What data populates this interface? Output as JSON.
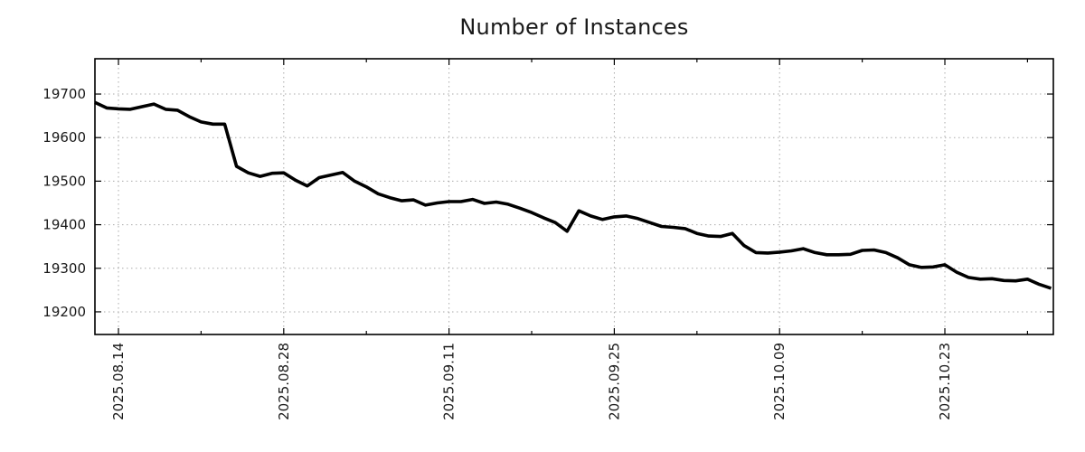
{
  "chart_data": {
    "type": "line",
    "title": "Number of Instances",
    "series_name": "number-of-instances",
    "x": [
      "2025.08.12",
      "2025.08.13",
      "2025.08.14",
      "2025.08.15",
      "2025.08.16",
      "2025.08.17",
      "2025.08.18",
      "2025.08.19",
      "2025.08.20",
      "2025.08.21",
      "2025.08.22",
      "2025.08.23",
      "2025.08.24",
      "2025.08.25",
      "2025.08.26",
      "2025.08.27",
      "2025.08.28",
      "2025.08.29",
      "2025.08.30",
      "2025.08.31",
      "2025.09.01",
      "2025.09.02",
      "2025.09.03",
      "2025.09.04",
      "2025.09.05",
      "2025.09.06",
      "2025.09.07",
      "2025.09.08",
      "2025.09.09",
      "2025.09.10",
      "2025.09.11",
      "2025.09.12",
      "2025.09.13",
      "2025.09.14",
      "2025.09.15",
      "2025.09.16",
      "2025.09.17",
      "2025.09.18",
      "2025.09.19",
      "2025.09.20",
      "2025.09.21",
      "2025.09.22",
      "2025.09.23",
      "2025.09.24",
      "2025.09.25",
      "2025.09.26",
      "2025.09.27",
      "2025.09.28",
      "2025.09.29",
      "2025.09.30",
      "2025.10.01",
      "2025.10.02",
      "2025.10.03",
      "2025.10.04",
      "2025.10.05",
      "2025.10.06",
      "2025.10.07",
      "2025.10.08",
      "2025.10.09",
      "2025.10.10",
      "2025.10.11",
      "2025.10.12",
      "2025.10.13",
      "2025.10.14",
      "2025.10.15",
      "2025.10.16",
      "2025.10.17",
      "2025.10.18",
      "2025.10.19",
      "2025.10.20",
      "2025.10.21",
      "2025.10.22",
      "2025.10.23",
      "2025.10.24",
      "2025.10.25",
      "2025.10.26",
      "2025.10.27",
      "2025.10.28",
      "2025.10.29",
      "2025.10.30",
      "2025.10.31",
      "2025.11.01"
    ],
    "values": [
      19681,
      19668,
      19666,
      19665,
      19671,
      19677,
      19665,
      19663,
      19648,
      19636,
      19631,
      19631,
      19534,
      19519,
      19511,
      19518,
      19519,
      19502,
      19489,
      19508,
      19514,
      19520,
      19500,
      19487,
      19471,
      19462,
      19455,
      19457,
      19445,
      19450,
      19453,
      19453,
      19458,
      19449,
      19452,
      19447,
      19438,
      19428,
      19416,
      19405,
      19385,
      19432,
      19420,
      19412,
      19418,
      19420,
      19414,
      19405,
      19396,
      19394,
      19391,
      19380,
      19374,
      19373,
      19380,
      19352,
      19336,
      19335,
      19337,
      19340,
      19345,
      19336,
      19331,
      19331,
      19332,
      19341,
      19342,
      19336,
      19324,
      19308,
      19302,
      19303,
      19308,
      19291,
      19279,
      19275,
      19276,
      19272,
      19271,
      19275,
      19263,
      19254
    ],
    "x_major_ticks": [
      "2025.08.14",
      "2025.08.28",
      "2025.09.11",
      "2025.09.25",
      "2025.10.09",
      "2025.10.23"
    ],
    "x_minor_ticks": [
      "2025.08.21",
      "2025.09.04",
      "2025.09.18",
      "2025.10.02",
      "2025.10.16",
      "2025.10.30"
    ],
    "y_ticks": [
      19200,
      19300,
      19400,
      19500,
      19600,
      19700
    ],
    "ylim": [
      19148,
      19781
    ],
    "xlabel": "",
    "ylabel": "",
    "grid": "dotted",
    "legend": "none",
    "colors": {
      "line": "#000000",
      "grid": "#aaaaaa",
      "axis": "#000000",
      "text": "#1a1a1a",
      "background": "#ffffff"
    }
  }
}
